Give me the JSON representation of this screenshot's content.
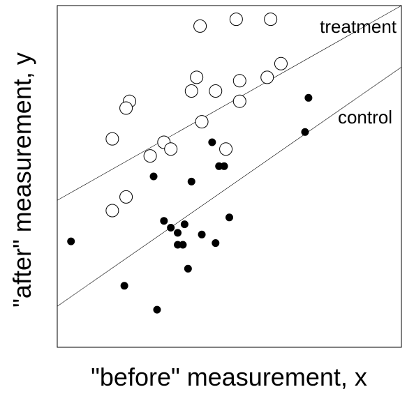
{
  "chart_data": {
    "type": "scatter",
    "title": "",
    "xlabel": "\"before\" measurement, x",
    "ylabel": "\"after\" measurement, y",
    "xlim": [
      0,
      100
    ],
    "ylim": [
      0,
      100
    ],
    "grid": false,
    "ticks": false,
    "legend": "none",
    "series": [
      {
        "name": "treatment",
        "marker": "open-circle",
        "color": "#000000",
        "points": [
          [
            52,
            96
          ],
          [
            62,
            96
          ],
          [
            41.5,
            94
          ],
          [
            65,
            83
          ],
          [
            40.5,
            79
          ],
          [
            53,
            78
          ],
          [
            61,
            79
          ],
          [
            39,
            75
          ],
          [
            46,
            75
          ],
          [
            53,
            72
          ],
          [
            21,
            72
          ],
          [
            20,
            70
          ],
          [
            42,
            66
          ],
          [
            16,
            61
          ],
          [
            31,
            60
          ],
          [
            33,
            58
          ],
          [
            49,
            58
          ],
          [
            27,
            56
          ],
          [
            20,
            44
          ],
          [
            16,
            40
          ]
        ]
      },
      {
        "name": "control",
        "marker": "filled-circle",
        "color": "#000000",
        "points": [
          [
            73,
            73
          ],
          [
            72,
            63
          ],
          [
            45,
            60
          ],
          [
            47,
            53
          ],
          [
            48.5,
            53
          ],
          [
            28,
            50
          ],
          [
            39,
            48.5
          ],
          [
            50,
            38
          ],
          [
            31,
            37
          ],
          [
            37,
            36
          ],
          [
            33,
            35
          ],
          [
            35,
            33.5
          ],
          [
            42,
            33
          ],
          [
            35,
            30
          ],
          [
            36.5,
            30
          ],
          [
            46,
            30.5
          ],
          [
            4,
            31
          ],
          [
            38,
            23
          ],
          [
            19.5,
            18
          ],
          [
            29,
            11
          ]
        ]
      }
    ],
    "fit_lines": [
      {
        "series": "treatment",
        "points": [
          [
            0,
            43
          ],
          [
            100,
            100
          ]
        ]
      },
      {
        "series": "control",
        "points": [
          [
            0,
            12
          ],
          [
            100,
            82
          ]
        ]
      }
    ],
    "annotations": [
      {
        "text": "treatment",
        "series": "treatment"
      },
      {
        "text": "control",
        "series": "control"
      }
    ]
  }
}
